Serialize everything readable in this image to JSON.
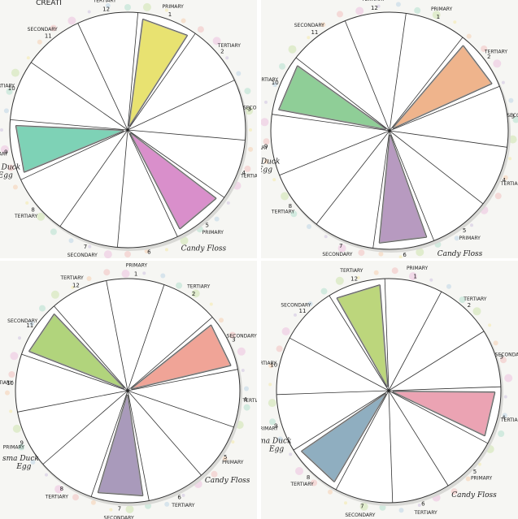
{
  "labels": {
    "n1": "1",
    "n2": "2",
    "n3": "3",
    "n4": "4",
    "n5": "5",
    "n6": "6",
    "n7": "7",
    "n8": "8",
    "n9": "9",
    "n10": "10",
    "n11": "11",
    "n12": "12",
    "primary": "PRIMARY",
    "secondary": "SECONDARY",
    "tertiary": "TERTIARY",
    "candy_floss": "Candy Floss",
    "duck_egg_a": "sma Duck",
    "duck_egg_b": "Egg",
    "header_fragment": "CREATI"
  },
  "panels": [
    {
      "name": "panel-yellow-pink-teal",
      "segments": [
        {
          "index": 1,
          "color": "#e8e271"
        },
        {
          "index": 5,
          "color": "#d98fcb"
        },
        {
          "index": 9,
          "color": "#7ed2b6"
        }
      ]
    },
    {
      "name": "panel-orange-purple-green",
      "segments": [
        {
          "index": 2,
          "color": "#efb48c"
        },
        {
          "index": 6,
          "color": "#b79ac0"
        },
        {
          "index": 10,
          "color": "#8fce97"
        }
      ]
    },
    {
      "name": "panel-salmon-lavender-lime",
      "segments": [
        {
          "index": 3,
          "color": "#f0a497"
        },
        {
          "index": 7,
          "color": "#a99abb"
        },
        {
          "index": 11,
          "color": "#b1d47c"
        }
      ]
    },
    {
      "name": "panel-pink-blue-olive",
      "segments": [
        {
          "index": 4,
          "color": "#eba3b3"
        },
        {
          "index": 8,
          "color": "#8faec0"
        },
        {
          "index": 12,
          "color": "#bcd67c"
        }
      ]
    }
  ]
}
